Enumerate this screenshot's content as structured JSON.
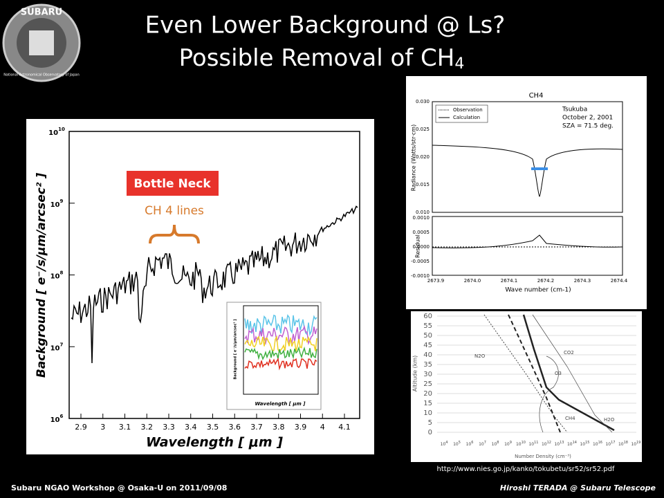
{
  "header": {
    "title_line1": "Even Lower Background @ Ls?",
    "title_line2": "Possible Removal of CH",
    "title_sub": "4"
  },
  "logo": {
    "name": "SUBARU",
    "org": "National Astronomical Observatory of Japan"
  },
  "main_plot": {
    "ylabel": "Background [ e⁻/s/μm/arcsec² ]",
    "xlabel": "Wavelength [ μm ]",
    "yticks": [
      {
        "base": "10",
        "exp": "10"
      },
      {
        "base": "10",
        "exp": "9"
      },
      {
        "base": "10",
        "exp": "8"
      },
      {
        "base": "10",
        "exp": "7"
      },
      {
        "base": "10",
        "exp": "6"
      }
    ],
    "xticks": [
      "2.9",
      "3",
      "3.1",
      "3.2",
      "3.3",
      "3.4",
      "3.5",
      "3.6",
      "3.7",
      "3.8",
      "3.9",
      "4",
      "4.1"
    ],
    "callout": "Bottle Neck",
    "lines_label": "CH 4  lines",
    "inset_xlabel": "Wavelength [ μm ]",
    "inset_ylabel": "Background [ e⁻/s/μm/arcsec² ]"
  },
  "ch4_plot": {
    "title": "CH4",
    "legend": [
      "Observation",
      "Calculation"
    ],
    "note": [
      "Tsukuba",
      "October 2, 2001",
      "SZA = 71.5 deg."
    ],
    "ylabel": "Radiance (Watts/str·cm)",
    "yticks": [
      "0.030",
      "0.025",
      "0.020",
      "0.015",
      "0.010"
    ],
    "res_label": "Residual",
    "res_yticks": [
      "0.0010",
      "0.0005",
      "0.0000",
      "-0.0005",
      "-0.0010"
    ],
    "xticks": [
      "2673.9",
      "2674.0",
      "2674.1",
      "2674.2",
      "2674.3",
      "2674.4"
    ],
    "xlabel": "Wave number (cm-1)"
  },
  "profile_plot": {
    "ylabel": "Altitude  (km)",
    "yticks": [
      "60",
      "55",
      "50",
      "45",
      "40",
      "35",
      "30",
      "25",
      "20",
      "15",
      "10",
      "5",
      "0"
    ],
    "xticks": [
      "4",
      "5",
      "6",
      "7",
      "8",
      "9",
      "10",
      "11",
      "12",
      "13",
      "14",
      "15",
      "16",
      "17",
      "18",
      "19"
    ],
    "xtick_base": "10",
    "xlabel": "Number Density  (cm⁻³)",
    "species": [
      "N2O",
      "CO2",
      "O3",
      "CH4",
      "H2O"
    ]
  },
  "source_url": "http://www.nies.go.jp/kanko/tokubetu/sr52/sr52.pdf",
  "footer": {
    "left": "Subaru NGAO Workshop @ Osaka-U on 2011/09/08",
    "right": "Hiroshi TERADA @ Subaru Telescope"
  }
}
